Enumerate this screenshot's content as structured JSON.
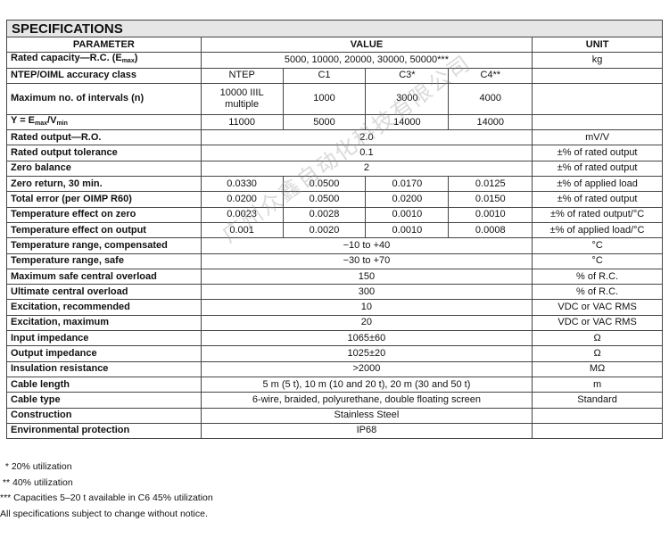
{
  "title": "SPECIFICATIONS",
  "headers": {
    "parameter": "PARAMETER",
    "value": "VALUE",
    "unit": "UNIT"
  },
  "rated_capacity": {
    "label_pre": "Rated capacity—R.C. (E",
    "label_sub": "max",
    "label_post": ")",
    "value": "5000, 10000, 20000, 30000, 50000***",
    "unit": "kg"
  },
  "accuracy": {
    "label": "NTEP/OIML accuracy class",
    "values": [
      "NTEP",
      "C1",
      "C3*",
      "C4**"
    ],
    "unit": ""
  },
  "intervals": {
    "label": "Maximum no. of intervals (n)",
    "values": [
      "10000 IIIL multiple",
      "1000",
      "3000",
      "4000"
    ],
    "unit": ""
  },
  "y_ratio": {
    "label_a": "Y = E",
    "sub_a": "max",
    "label_b": "/V",
    "sub_b": "min",
    "values": [
      "11000",
      "5000",
      "14000",
      "14000"
    ],
    "unit": ""
  },
  "rows_single_a": [
    {
      "label": "Rated output—R.O.",
      "value": "2.0",
      "unit": "mV/V"
    },
    {
      "label": "Rated output tolerance",
      "value": "0.1",
      "unit": "±% of rated output"
    },
    {
      "label": "Zero balance",
      "value": "2",
      "unit": "±% of rated output"
    }
  ],
  "rows_multi": [
    {
      "label": "Zero return, 30 min.",
      "values": [
        "0.0330",
        "0.0500",
        "0.0170",
        "0.0125"
      ],
      "unit": "±% of applied load"
    },
    {
      "label": "Total error (per OIMP R60)",
      "values": [
        "0.0200",
        "0.0500",
        "0.0200",
        "0.0150"
      ],
      "unit": "±% of rated output"
    },
    {
      "label": "Temperature effect on zero",
      "values": [
        "0.0023",
        "0.0028",
        "0.0010",
        "0.0010"
      ],
      "unit": "±% of rated output/°C"
    },
    {
      "label": "Temperature effect on output",
      "values": [
        "0.001",
        "0.0020",
        "0.0010",
        "0.0008"
      ],
      "unit": "±% of applied load/°C"
    }
  ],
  "rows_single_b": [
    {
      "label": "Temperature range, compensated",
      "value": "−10 to +40",
      "unit": "°C"
    },
    {
      "label": "Temperature range, safe",
      "value": "−30 to +70",
      "unit": "°C"
    },
    {
      "label": "Maximum safe central overload",
      "value": "150",
      "unit": "% of R.C."
    },
    {
      "label": "Ultimate central overload",
      "value": "300",
      "unit": "% of R.C."
    },
    {
      "label": "Excitation, recommended",
      "value": "10",
      "unit": "VDC or VAC RMS"
    },
    {
      "label": "Excitation, maximum",
      "value": "20",
      "unit": "VDC or VAC RMS"
    },
    {
      "label": "Input impedance",
      "value": "1065±60",
      "unit": "Ω"
    },
    {
      "label": "Output impedance",
      "value": "1025±20",
      "unit": "Ω"
    },
    {
      "label": "Insulation resistance",
      "value": ">2000",
      "unit": "MΩ"
    },
    {
      "label": "Cable length",
      "value": "5 m (5 t), 10 m (10 and 20 t), 20 m (30 and 50 t)",
      "unit": "m"
    },
    {
      "label": "Cable type",
      "value": "6-wire, braided, polyurethane, double floating screen",
      "unit": "Standard"
    },
    {
      "label": "Construction",
      "value": "Stainless Steel",
      "unit": ""
    },
    {
      "label": "Environmental protection",
      "value": "IP68",
      "unit": ""
    }
  ],
  "notes": [
    "  * 20% utilization",
    " ** 40% utilization",
    "*** Capacities 5–20 t available in C6 45% utilization",
    "All specifications subject to change without notice."
  ],
  "watermark": "广州众鑫自动化科技有限公司"
}
